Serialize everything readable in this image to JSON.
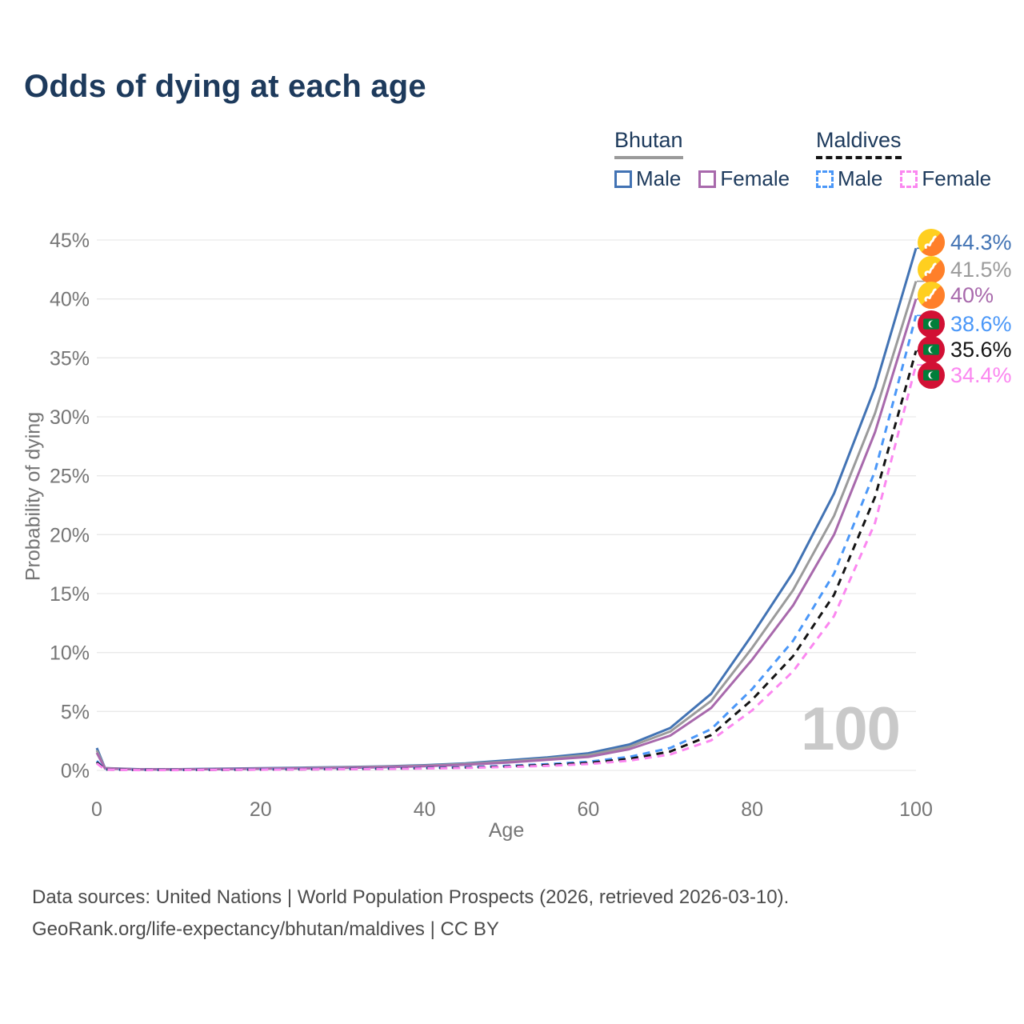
{
  "title": "Odds of dying at each age",
  "legend": {
    "groups": [
      {
        "name": "Bhutan",
        "line_style": "solid",
        "line_color": "#9a9a9a",
        "items": [
          {
            "label": "Male",
            "color": "#4273b4",
            "dash": false
          },
          {
            "label": "Female",
            "color": "#a869ac",
            "dash": false
          }
        ]
      },
      {
        "name": "Maldives",
        "line_style": "dashed",
        "line_color": "#141414",
        "items": [
          {
            "label": "Male",
            "color": "#4a97f8",
            "dash": true
          },
          {
            "label": "Female",
            "color": "#fb87f0",
            "dash": true
          }
        ]
      }
    ]
  },
  "watermark_age": "100",
  "footer": {
    "line1": "Data sources: United Nations | World Population Prospects (2026, retrieved 2026-03-10).",
    "line2": "GeoRank.org/life-expectancy/bhutan/maldives | CC BY"
  },
  "chart_data": {
    "type": "line",
    "title": "Odds of dying at each age",
    "xlabel": "Age",
    "ylabel": "Probability of dying",
    "xlim": [
      0,
      100
    ],
    "ylim": [
      0,
      45
    ],
    "grid": "horizontal",
    "x_ticks": [
      0,
      20,
      40,
      60,
      80,
      100
    ],
    "x_tick_labels": [
      "0",
      "20",
      "40",
      "60",
      "80",
      "100"
    ],
    "y_ticks": [
      0,
      5,
      10,
      15,
      20,
      25,
      30,
      35,
      40,
      45
    ],
    "y_tick_labels": [
      "0%",
      "5%",
      "10%",
      "15%",
      "20%",
      "25%",
      "30%",
      "35%",
      "40%",
      "45%"
    ],
    "ages": [
      0,
      1,
      5,
      10,
      15,
      20,
      25,
      30,
      35,
      40,
      45,
      50,
      55,
      60,
      65,
      70,
      75,
      80,
      85,
      90,
      95,
      100
    ],
    "series": [
      {
        "name": "Bhutan Male",
        "country": "Bhutan",
        "sex": "Male",
        "color": "#4273b4",
        "dashed": false,
        "flag": "bhutan",
        "end_label": "44.3%",
        "end_value": 44.3,
        "values": [
          1.9,
          0.2,
          0.1,
          0.1,
          0.14,
          0.19,
          0.23,
          0.28,
          0.34,
          0.44,
          0.6,
          0.85,
          1.1,
          1.45,
          2.2,
          3.6,
          6.5,
          11.5,
          16.8,
          23.5,
          32.5,
          44.3
        ]
      },
      {
        "name": "Bhutan Total",
        "country": "Bhutan",
        "sex": "Both",
        "color": "#9b9b9b",
        "dashed": false,
        "flag": "bhutan",
        "end_label": "41.5%",
        "end_value": 41.5,
        "values": [
          1.7,
          0.18,
          0.09,
          0.09,
          0.12,
          0.16,
          0.2,
          0.25,
          0.31,
          0.4,
          0.54,
          0.75,
          1.0,
          1.3,
          2.0,
          3.3,
          5.9,
          10.4,
          15.3,
          21.6,
          30.3,
          41.5
        ]
      },
      {
        "name": "Bhutan Female",
        "country": "Bhutan",
        "sex": "Female",
        "color": "#a869ac",
        "dashed": false,
        "flag": "bhutan",
        "end_label": "40%",
        "end_value": 40.0,
        "values": [
          1.5,
          0.16,
          0.08,
          0.08,
          0.11,
          0.14,
          0.17,
          0.21,
          0.27,
          0.35,
          0.48,
          0.66,
          0.9,
          1.15,
          1.8,
          2.95,
          5.3,
          9.4,
          14.0,
          20.0,
          28.7,
          40.0
        ]
      },
      {
        "name": "Maldives Male",
        "country": "Maldives",
        "sex": "Male",
        "color": "#4a97f8",
        "dashed": true,
        "flag": "maldives",
        "end_label": "38.6%",
        "end_value": 38.6,
        "values": [
          0.8,
          0.08,
          0.04,
          0.04,
          0.06,
          0.09,
          0.11,
          0.13,
          0.16,
          0.21,
          0.28,
          0.39,
          0.53,
          0.73,
          1.15,
          1.9,
          3.5,
          6.9,
          11.0,
          16.7,
          25.4,
          38.6
        ]
      },
      {
        "name": "Maldives Total",
        "country": "Maldives",
        "sex": "Both",
        "color": "#141414",
        "dashed": true,
        "flag": "maldives",
        "end_label": "35.6%",
        "end_value": 35.6,
        "values": [
          0.7,
          0.07,
          0.04,
          0.04,
          0.05,
          0.07,
          0.09,
          0.11,
          0.14,
          0.18,
          0.24,
          0.33,
          0.46,
          0.63,
          0.98,
          1.6,
          3.0,
          6.0,
          9.7,
          14.9,
          23.2,
          35.6
        ]
      },
      {
        "name": "Maldives Female",
        "country": "Maldives",
        "sex": "Female",
        "color": "#fb87f0",
        "dashed": true,
        "flag": "maldives",
        "end_label": "34.4%",
        "end_value": 34.4,
        "values": [
          0.6,
          0.06,
          0.03,
          0.03,
          0.05,
          0.06,
          0.08,
          0.1,
          0.12,
          0.16,
          0.21,
          0.29,
          0.39,
          0.54,
          0.83,
          1.35,
          2.55,
          5.1,
          8.4,
          13.1,
          21.0,
          34.4
        ]
      }
    ]
  }
}
